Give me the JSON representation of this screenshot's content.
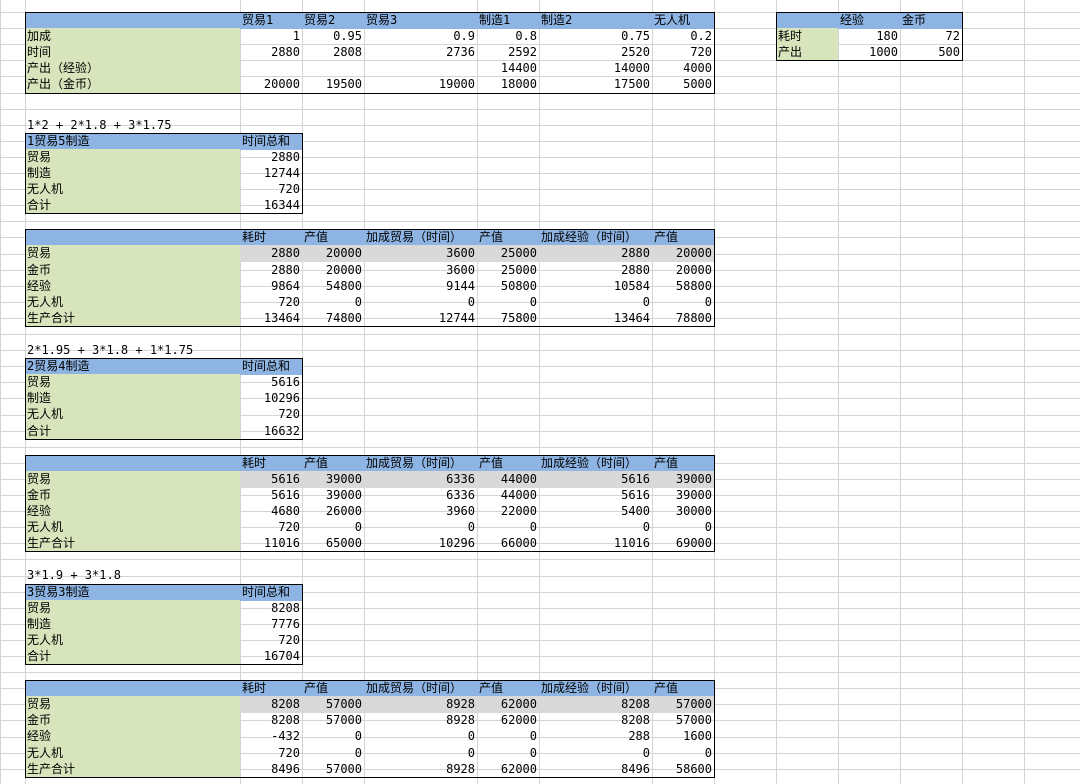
{
  "top_table": {
    "headers": [
      "贸易1",
      "贸易2",
      "贸易3",
      "制造1",
      "制造2",
      "无人机"
    ],
    "rows": [
      {
        "label": "加成",
        "values": [
          "1",
          "0.95",
          "0.9",
          "0.8",
          "0.75",
          "0.2"
        ]
      },
      {
        "label": "时间",
        "values": [
          "2880",
          "2808",
          "2736",
          "2592",
          "2520",
          "720"
        ]
      },
      {
        "label": "产出（经验）",
        "values": [
          "",
          "",
          "",
          "14400",
          "14000",
          "4000"
        ]
      },
      {
        "label": "产出（金币）",
        "values": [
          "20000",
          "19500",
          "19000",
          "18000",
          "17500",
          "5000"
        ]
      }
    ]
  },
  "side_table": {
    "headers": [
      "经验",
      "金币"
    ],
    "rows": [
      {
        "label": "耗时",
        "values": [
          "180",
          "72"
        ]
      },
      {
        "label": "产出",
        "values": [
          "1000",
          "500"
        ]
      }
    ]
  },
  "scenarios": [
    {
      "formula": "1*2 + 2*1.8 + 3*1.75",
      "title": "1贸易5制造",
      "time_header": "时间总和",
      "rows": [
        {
          "label": "贸易",
          "value": "2880"
        },
        {
          "label": "制造",
          "value": "12744"
        },
        {
          "label": "无人机",
          "value": "720"
        },
        {
          "label": "合计",
          "value": "16344"
        }
      ],
      "detail_headers": [
        "耗时",
        "产值",
        "加成贸易（时间）",
        "产值",
        "加成经验（时间）",
        "产值"
      ],
      "detail_rows": [
        {
          "label": "贸易",
          "values": [
            "2880",
            "20000",
            "3600",
            "25000",
            "2880",
            "20000"
          ]
        },
        {
          "label": "金币",
          "values": [
            "2880",
            "20000",
            "3600",
            "25000",
            "2880",
            "20000"
          ]
        },
        {
          "label": "经验",
          "values": [
            "9864",
            "54800",
            "9144",
            "50800",
            "10584",
            "58800"
          ]
        },
        {
          "label": "无人机",
          "values": [
            "720",
            "0",
            "0",
            "0",
            "0",
            "0"
          ]
        },
        {
          "label": "生产合计",
          "values": [
            "13464",
            "74800",
            "12744",
            "75800",
            "13464",
            "78800"
          ]
        }
      ]
    },
    {
      "formula": "2*1.95 + 3*1.8 + 1*1.75",
      "title": "2贸易4制造",
      "time_header": "时间总和",
      "rows": [
        {
          "label": "贸易",
          "value": "5616"
        },
        {
          "label": "制造",
          "value": "10296"
        },
        {
          "label": "无人机",
          "value": "720"
        },
        {
          "label": "合计",
          "value": "16632"
        }
      ],
      "detail_headers": [
        "耗时",
        "产值",
        "加成贸易（时间）",
        "产值",
        "加成经验（时间）",
        "产值"
      ],
      "detail_rows": [
        {
          "label": "贸易",
          "values": [
            "5616",
            "39000",
            "6336",
            "44000",
            "5616",
            "39000"
          ]
        },
        {
          "label": "金币",
          "values": [
            "5616",
            "39000",
            "6336",
            "44000",
            "5616",
            "39000"
          ]
        },
        {
          "label": "经验",
          "values": [
            "4680",
            "26000",
            "3960",
            "22000",
            "5400",
            "30000"
          ]
        },
        {
          "label": "无人机",
          "values": [
            "720",
            "0",
            "0",
            "0",
            "0",
            "0"
          ]
        },
        {
          "label": "生产合计",
          "values": [
            "11016",
            "65000",
            "10296",
            "66000",
            "11016",
            "69000"
          ]
        }
      ]
    },
    {
      "formula": "3*1.9 + 3*1.8",
      "title": "3贸易3制造",
      "time_header": "时间总和",
      "rows": [
        {
          "label": "贸易",
          "value": "8208"
        },
        {
          "label": "制造",
          "value": "7776"
        },
        {
          "label": "无人机",
          "value": "720"
        },
        {
          "label": "合计",
          "value": "16704"
        }
      ],
      "detail_headers": [
        "耗时",
        "产值",
        "加成贸易（时间）",
        "产值",
        "加成经验（时间）",
        "产值"
      ],
      "detail_rows": [
        {
          "label": "贸易",
          "values": [
            "8208",
            "57000",
            "8928",
            "62000",
            "8208",
            "57000"
          ]
        },
        {
          "label": "金币",
          "values": [
            "8208",
            "57000",
            "8928",
            "62000",
            "8208",
            "57000"
          ]
        },
        {
          "label": "经验",
          "values": [
            "-432",
            "0",
            "0",
            "0",
            "288",
            "1600"
          ]
        },
        {
          "label": "无人机",
          "values": [
            "720",
            "0",
            "0",
            "0",
            "0",
            "0"
          ]
        },
        {
          "label": "生产合计",
          "values": [
            "8496",
            "57000",
            "8928",
            "62000",
            "8496",
            "58600"
          ]
        }
      ]
    }
  ],
  "colors": {
    "header": "#8db4e2",
    "label": "#d8e4bc",
    "highlight": "#d9d9d9",
    "grid": "#d4d4d4"
  }
}
